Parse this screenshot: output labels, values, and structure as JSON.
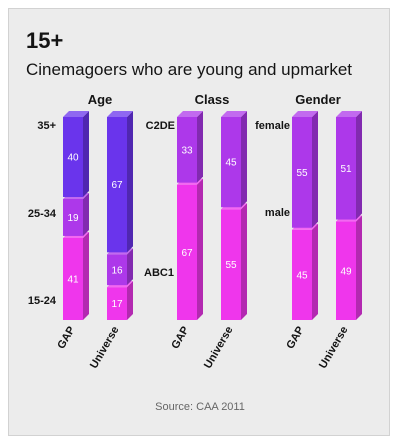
{
  "header": {
    "title": "15+",
    "subtitle": "Cinemagoers who are young and upmarket"
  },
  "source": "Source: CAA 2011",
  "chart_data": {
    "type": "bar",
    "stacked": true,
    "percent": true,
    "panels": [
      {
        "title": "Age",
        "segment_labels": [
          "15-24",
          "25-34",
          "35+"
        ],
        "bars": [
          {
            "name": "GAP",
            "values": [
              41,
              19,
              40
            ]
          },
          {
            "name": "Universe",
            "values": [
              17,
              16,
              67
            ]
          }
        ]
      },
      {
        "title": "Class",
        "segment_labels": [
          "ABC1",
          "C2DE"
        ],
        "bars": [
          {
            "name": "GAP",
            "values": [
              67,
              33
            ]
          },
          {
            "name": "Universe",
            "values": [
              55,
              45
            ]
          }
        ]
      },
      {
        "title": "Gender",
        "segment_labels": [
          "male",
          "female"
        ],
        "bars": [
          {
            "name": "GAP",
            "values": [
              45,
              55
            ]
          },
          {
            "name": "Universe",
            "values": [
              49,
              51
            ]
          }
        ]
      }
    ]
  },
  "colors": {
    "segment_1": "#ef36ec",
    "segment_2": "#ad38ea",
    "segment_3": "#6a34ec"
  }
}
